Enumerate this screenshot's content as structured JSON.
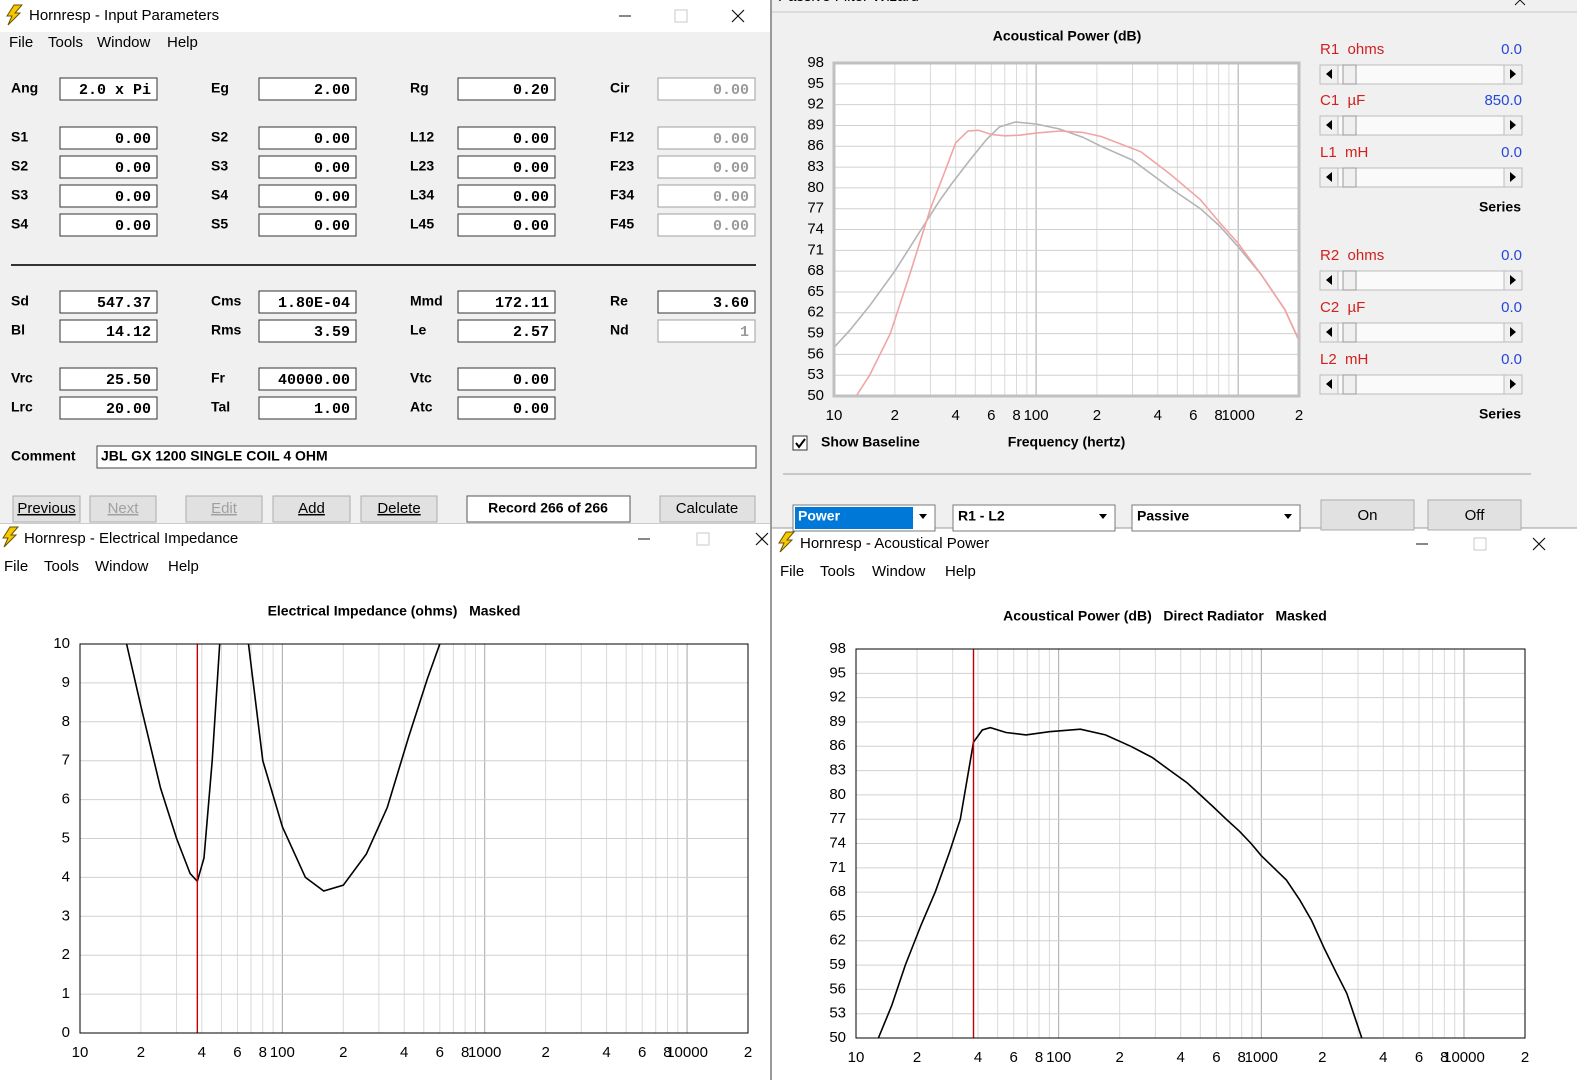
{
  "input_window": {
    "title": "Hornresp - Input Parameters",
    "menu": [
      "File",
      "Tools",
      "Window",
      "Help"
    ],
    "rows": [
      [
        {
          "label": "Ang",
          "value": "2.0 x Pi"
        },
        {
          "label": "Eg",
          "value": "2.00"
        },
        {
          "label": "Rg",
          "value": "0.20"
        },
        {
          "label": "Cir",
          "value": "0.00",
          "disabled": true
        }
      ],
      [
        {
          "label": "S1",
          "value": "0.00"
        },
        {
          "label": "S2",
          "value": "0.00"
        },
        {
          "label": "L12",
          "value": "0.00"
        },
        {
          "label": "F12",
          "value": "0.00",
          "disabled": true
        }
      ],
      [
        {
          "label": "S2",
          "value": "0.00"
        },
        {
          "label": "S3",
          "value": "0.00"
        },
        {
          "label": "L23",
          "value": "0.00"
        },
        {
          "label": "F23",
          "value": "0.00",
          "disabled": true
        }
      ],
      [
        {
          "label": "S3",
          "value": "0.00"
        },
        {
          "label": "S4",
          "value": "0.00"
        },
        {
          "label": "L34",
          "value": "0.00"
        },
        {
          "label": "F34",
          "value": "0.00",
          "disabled": true
        }
      ],
      [
        {
          "label": "S4",
          "value": "0.00"
        },
        {
          "label": "S5",
          "value": "0.00"
        },
        {
          "label": "L45",
          "value": "0.00"
        },
        {
          "label": "F45",
          "value": "0.00",
          "disabled": true
        }
      ],
      [
        {
          "label": "Sd",
          "value": "547.37"
        },
        {
          "label": "Cms",
          "value": "1.80E-04"
        },
        {
          "label": "Mmd",
          "value": "172.11"
        },
        {
          "label": "Re",
          "value": "3.60"
        }
      ],
      [
        {
          "label": "Bl",
          "value": "14.12"
        },
        {
          "label": "Rms",
          "value": "3.59"
        },
        {
          "label": "Le",
          "value": "2.57"
        },
        {
          "label": "Nd",
          "value": "1",
          "disabled": true
        }
      ],
      [
        {
          "label": "Vrc",
          "value": "25.50"
        },
        {
          "label": "Fr",
          "value": "40000.00"
        },
        {
          "label": "Vtc",
          "value": "0.00"
        }
      ],
      [
        {
          "label": "Lrc",
          "value": "20.00"
        },
        {
          "label": "Tal",
          "value": "1.00"
        },
        {
          "label": "Atc",
          "value": "0.00"
        }
      ]
    ],
    "comment_label": "Comment",
    "comment": "JBL GX 1200 SINGLE COIL 4 OHM",
    "buttons": [
      {
        "label": "Previous"
      },
      {
        "label": "Next",
        "disabled": true
      },
      {
        "label": "Edit",
        "disabled": true
      },
      {
        "label": "Add"
      },
      {
        "label": "Delete"
      }
    ],
    "record": "Record 266 of 266",
    "calculate": "Calculate"
  },
  "filter_window": {
    "title": "Passive Filter Wizard",
    "sliders": [
      {
        "label": "R1  ohms",
        "value": "0.0"
      },
      {
        "label": "C1  µF",
        "value": "850.0"
      },
      {
        "label": "L1  mH",
        "value": "0.0"
      },
      {
        "label": "R2  ohms",
        "value": "0.0"
      },
      {
        "label": "C2  µF",
        "value": "0.0"
      },
      {
        "label": "L2  mH",
        "value": "0.0"
      }
    ],
    "series_labels": [
      "Series",
      "Series"
    ],
    "show_baseline": "Show Baseline",
    "dropdowns": [
      "Power",
      "R1 - L2",
      "Passive"
    ],
    "buttons": [
      "On",
      "Off"
    ]
  },
  "impedance_window": {
    "title": "Hornresp - Electrical Impedance",
    "menu": [
      "File",
      "Tools",
      "Window",
      "Help"
    ]
  },
  "power_window": {
    "title": "Hornresp - Acoustical Power",
    "menu": [
      "File",
      "Tools",
      "Window",
      "Help"
    ]
  },
  "chart_data": [
    {
      "type": "line",
      "title": "Acoustical Power (dB)",
      "x_label": "Frequency (hertz)",
      "log_x": true,
      "grid": true,
      "xlim": [
        10,
        2000
      ],
      "xticks": [
        10,
        {
          "value": 20,
          "label": "2"
        },
        {
          "value": 40,
          "label": "4"
        },
        {
          "value": 60,
          "label": "6"
        },
        {
          "value": 80,
          "label": "8"
        },
        100,
        {
          "value": 200,
          "label": "2"
        },
        {
          "value": 400,
          "label": "4"
        },
        {
          "value": 600,
          "label": "6"
        },
        {
          "value": 800,
          "label": "8"
        },
        1000,
        {
          "value": 2000,
          "label": "2"
        }
      ],
      "ylim": [
        50,
        98
      ],
      "yticks": [
        50,
        53,
        56,
        59,
        62,
        65,
        68,
        71,
        74,
        77,
        80,
        83,
        86,
        89,
        92,
        95,
        98
      ],
      "series": [
        {
          "color": "#b4b4b4",
          "x": [
            10,
            12,
            15,
            20,
            27,
            33,
            38,
            47,
            57,
            66,
            79,
            100,
            130,
            170,
            210,
            300,
            460,
            650,
            810,
            1000,
            1300,
            1700,
            2000
          ],
          "values": [
            57,
            59.5,
            63,
            68,
            74,
            78,
            80.5,
            84,
            87,
            88.8,
            89.5,
            89.2,
            88.5,
            87.3,
            86,
            84,
            80,
            77,
            74.5,
            71.5,
            67.5,
            62.5,
            58
          ]
        },
        {
          "color": "#f2a4a4",
          "x": [
            12.9,
            15,
            19,
            24,
            30,
            35,
            40,
            46,
            52,
            60,
            70,
            83,
            100,
            131,
            170,
            210,
            330,
            460,
            650,
            810,
            1000,
            1300,
            1700,
            2000
          ],
          "values": [
            50,
            53,
            59,
            68,
            77,
            82,
            86.5,
            88.2,
            88.3,
            87.7,
            87.5,
            87.6,
            87.9,
            88.2,
            88,
            87.4,
            85.2,
            82,
            78.3,
            75,
            72,
            67.5,
            62.5,
            58
          ]
        }
      ]
    },
    {
      "type": "line",
      "title": "Electrical Impedance (ohms)   Masked",
      "log_x": true,
      "grid": true,
      "xlim": [
        10,
        20000
      ],
      "xticks": [
        10,
        {
          "value": 20,
          "label": "2"
        },
        {
          "value": 40,
          "label": "4"
        },
        {
          "value": 60,
          "label": "6"
        },
        {
          "value": 80,
          "label": "8"
        },
        100,
        {
          "value": 200,
          "label": "2"
        },
        {
          "value": 400,
          "label": "4"
        },
        {
          "value": 600,
          "label": "6"
        },
        {
          "value": 800,
          "label": "8"
        },
        1000,
        {
          "value": 2000,
          "label": "2"
        },
        {
          "value": 4000,
          "label": "4"
        },
        {
          "value": 6000,
          "label": "6"
        },
        {
          "value": 8000,
          "label": "8"
        },
        10000,
        {
          "value": 20000,
          "label": "2"
        }
      ],
      "ylim": [
        0,
        10
      ],
      "yticks": [
        0,
        1,
        2,
        3,
        4,
        5,
        6,
        7,
        8,
        9,
        10
      ],
      "marker_x": 38,
      "marker_color": "#c00000",
      "series": [
        {
          "color": "#000000",
          "x": [
            17,
            20,
            25,
            30,
            35,
            38,
            41,
            45,
            49,
            58,
            68,
            80,
            100,
            130,
            160,
            200,
            260,
            330,
            420,
            520,
            600
          ],
          "values": [
            10,
            8.4,
            6.3,
            5.0,
            4.1,
            3.9,
            4.5,
            7.0,
            10,
            null,
            10,
            7.0,
            5.3,
            4.0,
            3.65,
            3.8,
            4.6,
            5.8,
            7.6,
            9.1,
            10
          ]
        }
      ]
    },
    {
      "type": "line",
      "title": "Acoustical Power (dB)   Direct Radiator   Masked",
      "log_x": true,
      "grid": true,
      "xlim": [
        10,
        20000
      ],
      "xticks": [
        10,
        {
          "value": 20,
          "label": "2"
        },
        {
          "value": 40,
          "label": "4"
        },
        {
          "value": 60,
          "label": "6"
        },
        {
          "value": 80,
          "label": "8"
        },
        100,
        {
          "value": 200,
          "label": "2"
        },
        {
          "value": 400,
          "label": "4"
        },
        {
          "value": 600,
          "label": "6"
        },
        {
          "value": 800,
          "label": "8"
        },
        1000,
        {
          "value": 2000,
          "label": "2"
        },
        {
          "value": 4000,
          "label": "4"
        },
        {
          "value": 6000,
          "label": "6"
        },
        {
          "value": 8000,
          "label": "8"
        },
        10000,
        {
          "value": 20000,
          "label": "2"
        }
      ],
      "ylim": [
        50,
        98
      ],
      "yticks": [
        50,
        53,
        56,
        59,
        62,
        65,
        68,
        71,
        74,
        77,
        80,
        83,
        86,
        89,
        92,
        95,
        98
      ],
      "marker_x": 38,
      "marker_color": "#c00000",
      "series": [
        {
          "color": "#000000",
          "x": [
            12.9,
            15,
            17.5,
            21,
            24.6,
            29,
            32.7,
            38,
            42,
            46,
            55,
            69,
            90,
            128,
            170,
            227,
            290,
            355,
            430,
            500,
            580,
            671,
            780,
            890,
            1000,
            1120,
            1330,
            1550,
            1770,
            2050,
            2350,
            2640,
            3130
          ],
          "values": [
            50,
            54,
            59,
            64,
            68,
            73,
            77,
            86.5,
            88,
            88.3,
            87.7,
            87.4,
            87.8,
            88.1,
            87.4,
            86,
            84.6,
            83,
            81.5,
            80,
            78.5,
            77,
            75.5,
            74,
            72.5,
            71.3,
            69.5,
            67,
            64.5,
            61,
            58,
            55.5,
            50
          ]
        }
      ]
    }
  ]
}
